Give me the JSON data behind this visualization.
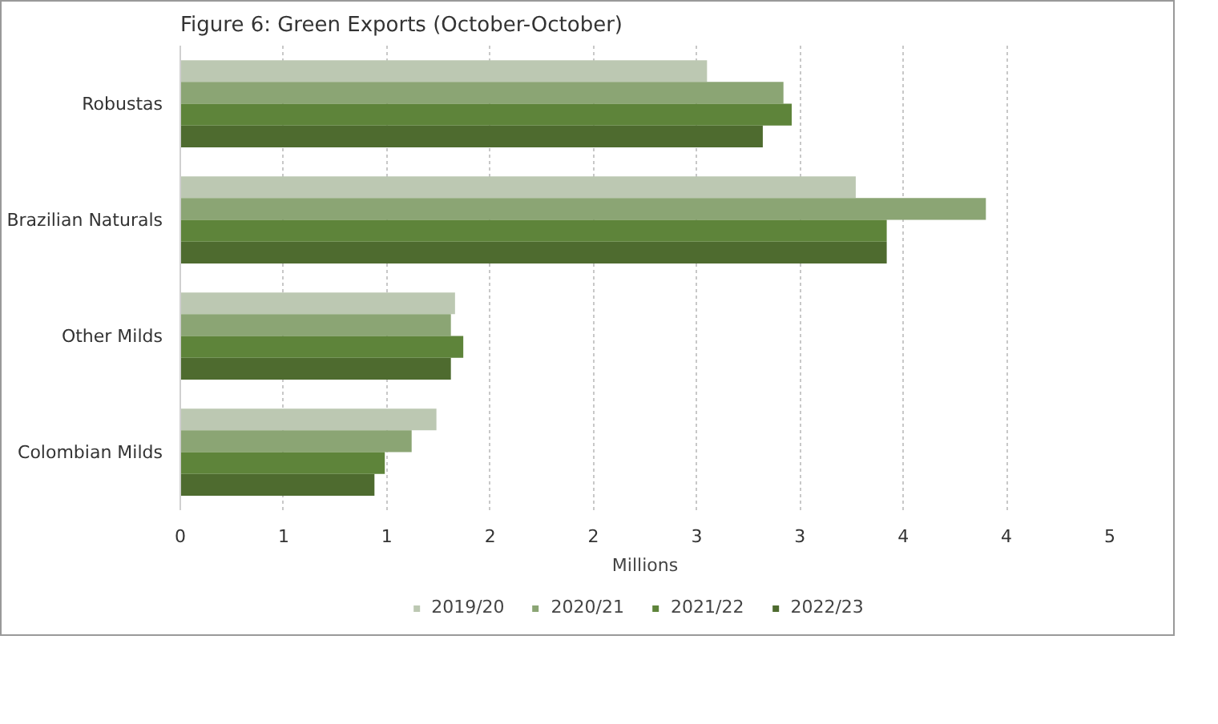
{
  "chart_data": {
    "type": "bar",
    "orientation": "horizontal",
    "title": "Figure 6: Green Exports (October-October)",
    "xlabel": "Millions",
    "categories": [
      "Robustas",
      "Brazilian Naturals",
      "Other Milds",
      "Colombian Milds"
    ],
    "series": [
      {
        "name": "2019/20",
        "color": "#bcc8b2",
        "values": [
          2.55,
          3.27,
          1.33,
          1.24
        ]
      },
      {
        "name": "2020/21",
        "color": "#8ba574",
        "values": [
          2.92,
          3.9,
          1.31,
          1.12
        ]
      },
      {
        "name": "2021/22",
        "color": "#5e843a",
        "values": [
          2.96,
          3.42,
          1.37,
          0.99
        ]
      },
      {
        "name": "2022/23",
        "color": "#4e6b2f",
        "values": [
          2.82,
          3.42,
          1.31,
          0.94
        ]
      }
    ],
    "xlim": [
      0,
      4.5
    ],
    "xticks": [
      0,
      {
        "value": 0.5,
        "label": "1"
      },
      1,
      {
        "value": 1.5,
        "label": "2"
      },
      2,
      {
        "value": 2.5,
        "label": "3"
      },
      3,
      {
        "value": 3.5,
        "label": "4"
      },
      4,
      {
        "value": 4.5,
        "label": "5"
      }
    ],
    "grid": "x",
    "legend": "bottom"
  }
}
